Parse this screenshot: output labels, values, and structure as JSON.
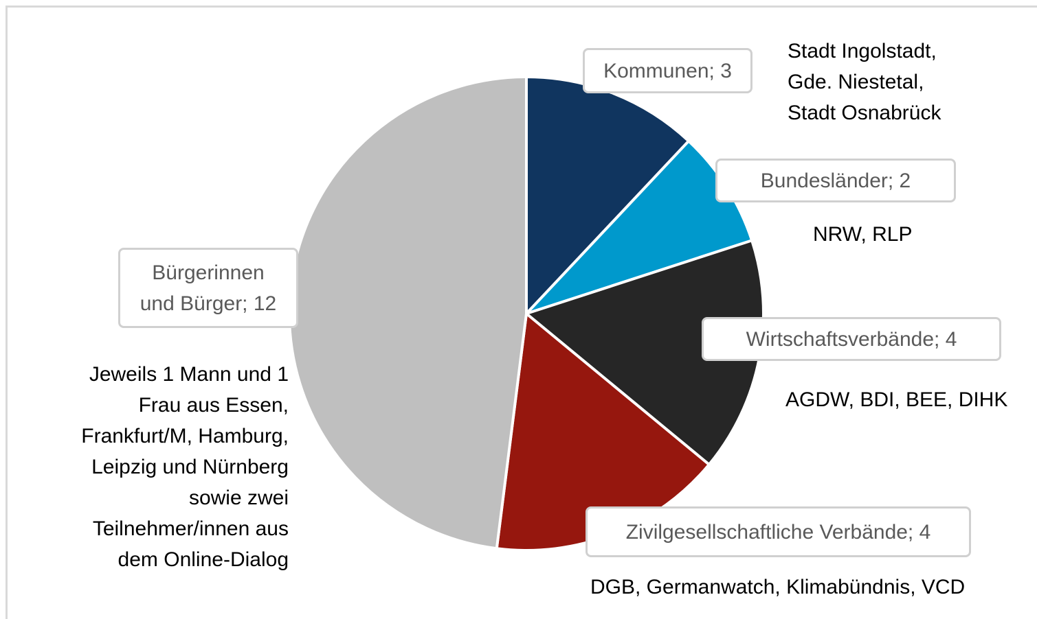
{
  "chart_data": {
    "type": "pie",
    "values": [
      3,
      2,
      4,
      4,
      12
    ],
    "value_labels": [
      "Kommunen; 3",
      "Bundesländer; 2",
      "Wirtschaftsverbände; 4",
      "Zivilgesellschaftliche Verbände; 4",
      "Bürgerinnen\nund Bürger; 12"
    ],
    "colors": [
      "#10355f",
      "#0099cc",
      "#262626",
      "#96170e",
      "#bfbfbf"
    ],
    "annotations": [
      "Stadt Ingolstadt,\nGde. Niestetal,\nStadt Osnabrück",
      "NRW, RLP",
      "AGDW, BDI, BEE, DIHK",
      "DGB, Germanwatch, Klimabündnis, VCD",
      "Jeweils 1 Mann und 1\nFrau aus Essen,\nFrankfurt/M, Hamburg,\nLeipzig und Nürnberg\nsowie zwei\nTeilnehmer/innen aus\ndem Online-Dialog"
    ]
  }
}
